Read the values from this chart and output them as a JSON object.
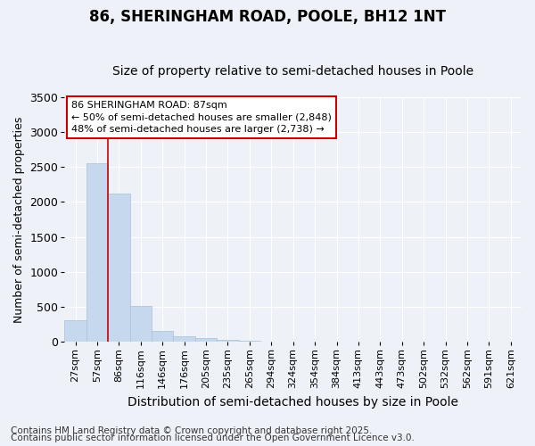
{
  "title": "86, SHERINGHAM ROAD, POOLE, BH12 1NT",
  "subtitle": "Size of property relative to semi-detached houses in Poole",
  "xlabel": "Distribution of semi-detached houses by size in Poole",
  "ylabel": "Number of semi-detached properties",
  "categories": [
    "27sqm",
    "57sqm",
    "86sqm",
    "116sqm",
    "146sqm",
    "176sqm",
    "205sqm",
    "235sqm",
    "265sqm",
    "294sqm",
    "324sqm",
    "354sqm",
    "384sqm",
    "413sqm",
    "443sqm",
    "473sqm",
    "502sqm",
    "532sqm",
    "562sqm",
    "591sqm",
    "621sqm"
  ],
  "values": [
    305,
    2550,
    2125,
    510,
    155,
    80,
    50,
    25,
    15,
    3,
    2,
    1,
    0,
    0,
    0,
    0,
    0,
    0,
    0,
    0,
    0
  ],
  "bar_color": "#c5d8ed",
  "bar_edge_color": "#aabfd6",
  "red_line_x": 1.5,
  "annotation_title": "86 SHERINGHAM ROAD: 87sqm",
  "annotation_line1": "← 50% of semi-detached houses are smaller (2,848)",
  "annotation_line2": "48% of semi-detached houses are larger (2,738) →",
  "annotation_box_facecolor": "#ffffff",
  "annotation_box_edgecolor": "#cc0000",
  "ylim": [
    0,
    3500
  ],
  "yticks": [
    0,
    500,
    1000,
    1500,
    2000,
    2500,
    3000,
    3500
  ],
  "footnote1": "Contains HM Land Registry data © Crown copyright and database right 2025.",
  "footnote2": "Contains public sector information licensed under the Open Government Licence v3.0.",
  "bg_color": "#eef2f8",
  "grid_color": "#ffffff",
  "title_fontsize": 12,
  "subtitle_fontsize": 10,
  "ylabel_fontsize": 9,
  "xlabel_fontsize": 10,
  "tick_fontsize": 8,
  "ann_fontsize": 8,
  "footnote_fontsize": 7.5
}
